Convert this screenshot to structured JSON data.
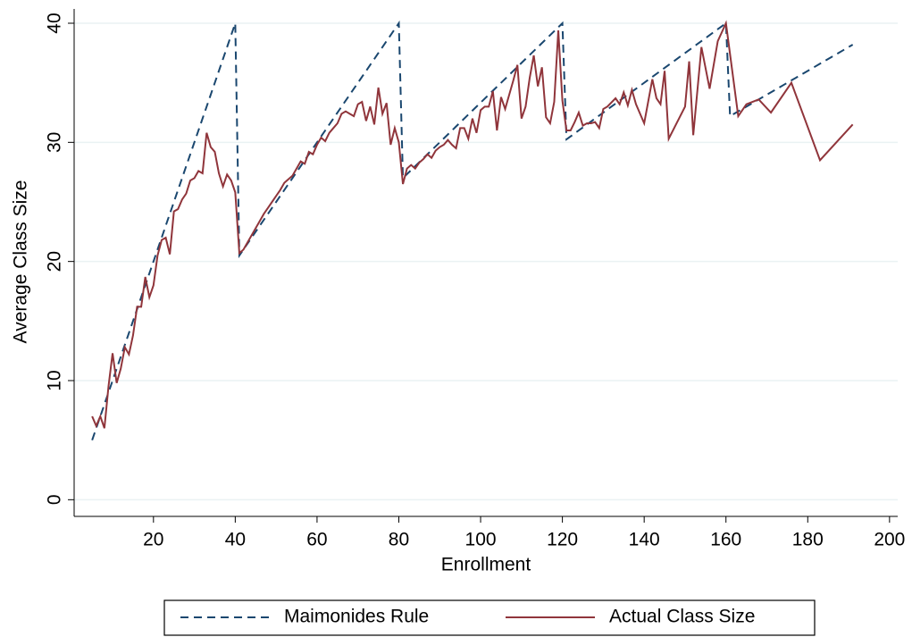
{
  "chart_data": {
    "type": "line",
    "xlabel": "Enrollment",
    "ylabel": "Average Class Size",
    "xlim": [
      0.6,
      202
    ],
    "ylim": [
      -1.4,
      41.2
    ],
    "xticks": [
      20,
      40,
      60,
      80,
      100,
      120,
      140,
      160,
      180,
      200
    ],
    "yticks": [
      0,
      10,
      20,
      30,
      40
    ],
    "grid": true,
    "legend": "bottom",
    "series": [
      {
        "name": "Maimonides Rule",
        "color": "#1a476f",
        "dash": true,
        "x": [
          5,
          40,
          41,
          80,
          81,
          120,
          121,
          160,
          161,
          191
        ],
        "values": [
          5,
          40,
          20.5,
          40,
          27,
          40,
          30.25,
          40,
          32.2,
          38.2
        ]
      },
      {
        "name": "Actual Class Size",
        "color": "#90353b",
        "dash": false,
        "x": [
          5,
          6,
          7,
          8,
          9,
          10,
          11,
          12,
          13,
          14,
          15,
          16,
          17,
          18,
          19,
          20,
          21,
          22,
          23,
          24,
          25,
          26,
          27,
          28,
          29,
          30,
          31,
          32,
          33,
          34,
          35,
          36,
          37,
          38,
          39,
          40,
          41,
          42,
          43,
          44,
          45,
          46,
          47,
          48,
          49,
          50,
          51,
          52,
          53,
          54,
          55,
          56,
          57,
          58,
          59,
          60,
          61,
          62,
          63,
          64,
          65,
          66,
          67,
          68,
          69,
          70,
          71,
          72,
          73,
          74,
          75,
          76,
          77,
          78,
          79,
          80,
          81,
          82,
          83,
          84,
          85,
          86,
          87,
          88,
          89,
          90,
          91,
          92,
          93,
          94,
          95,
          96,
          97,
          98,
          99,
          100,
          101,
          102,
          103,
          104,
          105,
          106,
          107,
          108,
          109,
          110,
          111,
          112,
          113,
          114,
          115,
          116,
          117,
          118,
          119,
          120,
          121,
          122,
          123,
          124,
          125,
          126,
          127,
          128,
          129,
          130,
          131,
          133,
          134,
          135,
          136,
          137,
          138,
          140,
          142,
          143,
          144,
          145,
          146,
          150,
          151,
          152,
          154,
          156,
          158,
          160,
          163,
          165,
          168,
          171,
          176,
          183,
          191
        ],
        "values": [
          7,
          6.2,
          7,
          6,
          9.5,
          12.3,
          9.8,
          11,
          12.8,
          12.2,
          13.8,
          16.2,
          16.2,
          18.7,
          17,
          18,
          20.5,
          21.8,
          22,
          20.6,
          24.2,
          24.4,
          25.2,
          25.7,
          26.8,
          27,
          27.6,
          27.4,
          30.8,
          29.6,
          29.2,
          27.4,
          26.3,
          27.3,
          26.8,
          25.8,
          20.7,
          21,
          21.6,
          22.2,
          22.8,
          23.4,
          24,
          24.5,
          25,
          25.5,
          26,
          26.6,
          26.9,
          27.2,
          27.8,
          28.4,
          28.2,
          29.2,
          29,
          29.8,
          30.4,
          30.1,
          30.8,
          31.2,
          31.6,
          32.4,
          32.6,
          32.4,
          32.2,
          33.2,
          33.4,
          31.8,
          33,
          31.5,
          34.6,
          32.4,
          33.3,
          29.8,
          31.2,
          30,
          26.5,
          27.8,
          28.1,
          27.8,
          28.3,
          28.6,
          29,
          28.7,
          29.3,
          29.6,
          29.8,
          30.2,
          29.8,
          29.5,
          31.2,
          31.2,
          30.3,
          32,
          30.8,
          32.7,
          33,
          33,
          34.3,
          31,
          33.8,
          32.8,
          34,
          35.2,
          36.5,
          32,
          33,
          35.4,
          37.3,
          34.7,
          36.3,
          32.1,
          31.6,
          33.4,
          39.4,
          33.5,
          31,
          31,
          31.7,
          32.5,
          31.4,
          31.6,
          31.6,
          31.7,
          31.2,
          32.8,
          33,
          33.7,
          33.2,
          34.2,
          33.1,
          34.4,
          33.2,
          31.6,
          35.3,
          33.7,
          33.2,
          36,
          30.3,
          33,
          36.8,
          30.6,
          38,
          34.5,
          38.5,
          40,
          32.2,
          33.2,
          33.6,
          32.5,
          35,
          28.5,
          31.5
        ]
      }
    ]
  }
}
